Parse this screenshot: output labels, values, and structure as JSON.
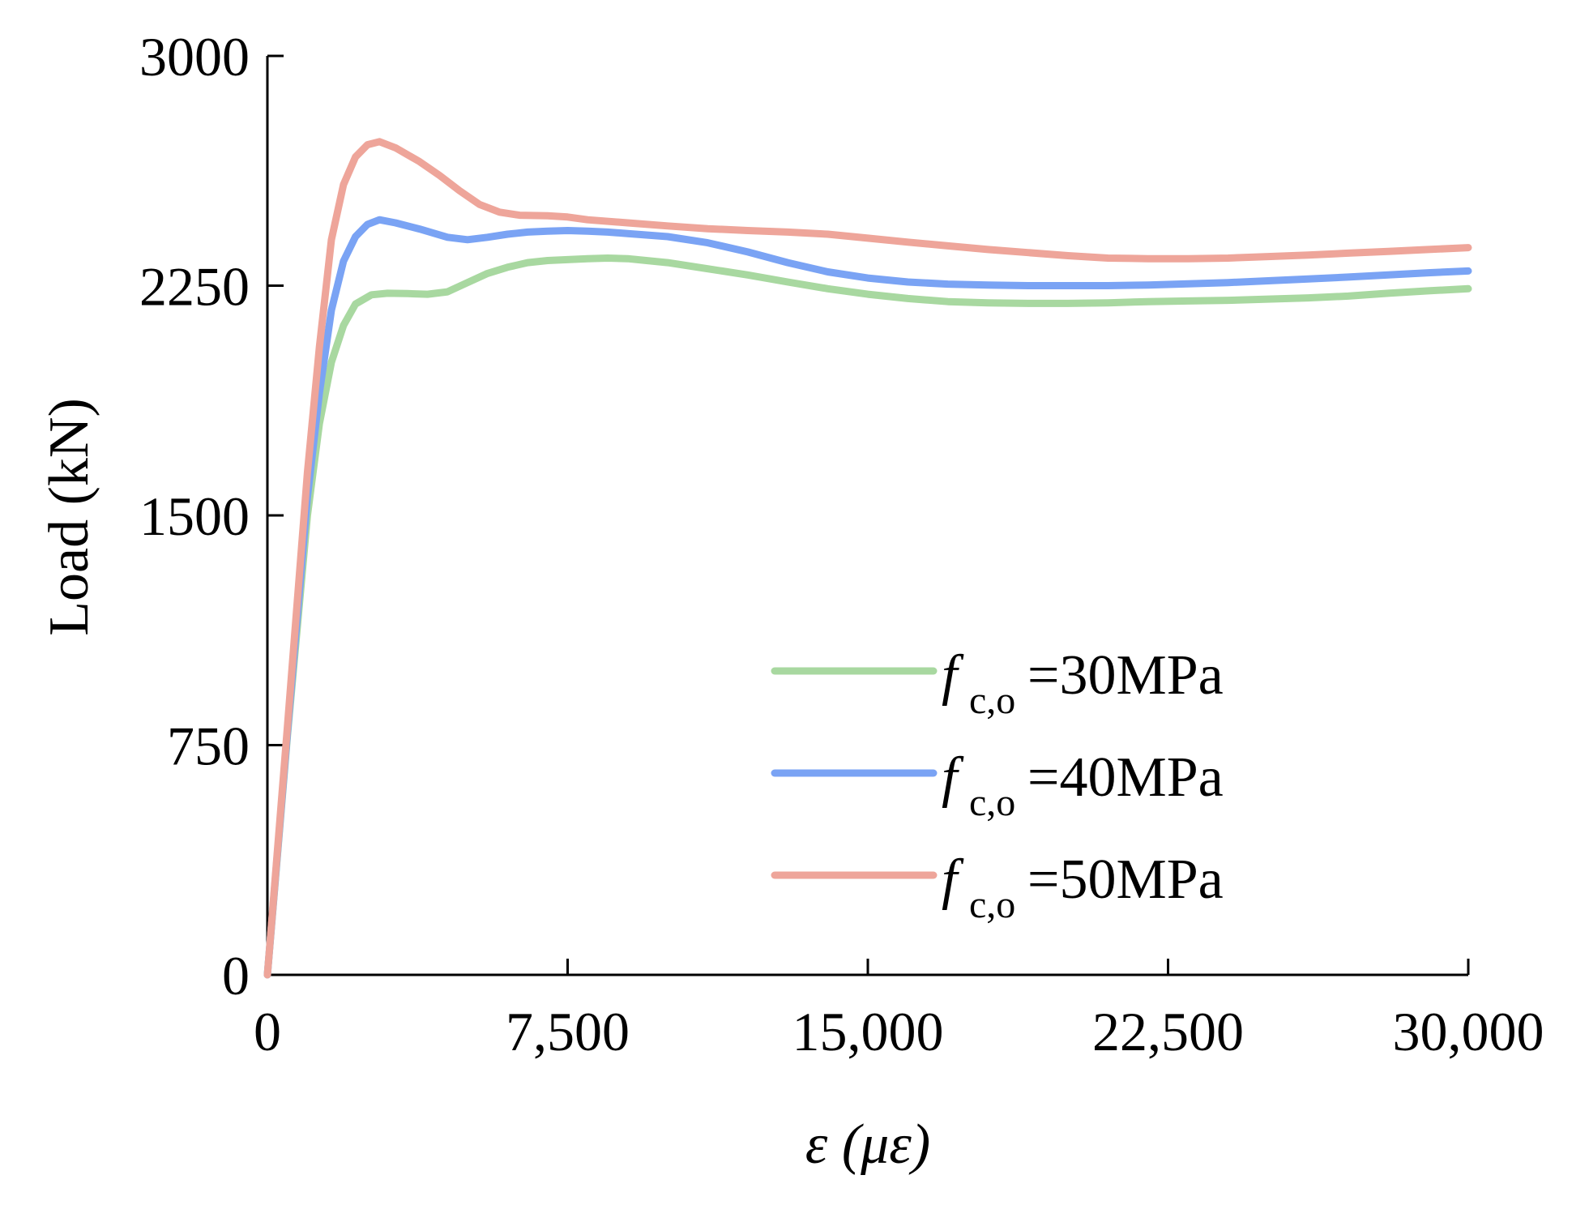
{
  "chart_data": {
    "type": "line",
    "xlabel": "ε (με)",
    "ylabel": "Load (kN)",
    "xlim": [
      0,
      30000
    ],
    "ylim": [
      0,
      3000
    ],
    "x_ticks": [
      0,
      7500,
      15000,
      22500,
      30000
    ],
    "x_tick_labels": [
      "0",
      "7,500",
      "15,000",
      "22,500",
      "30,000"
    ],
    "y_ticks": [
      0,
      750,
      1500,
      2250,
      3000
    ],
    "y_tick_labels": [
      "0",
      "750",
      "1500",
      "2250",
      "3000"
    ],
    "grid": false,
    "legend_position": "lower-right",
    "series": [
      {
        "name": "fc,o=30MPa",
        "legend_main": "f",
        "legend_sub": "c,o",
        "legend_rest": "=30MPa",
        "color": "#a8d8a0",
        "x": [
          0,
          500,
          1000,
          1300,
          1600,
          1900,
          2200,
          2600,
          3000,
          3500,
          4000,
          4500,
          5000,
          5500,
          6000,
          6500,
          7000,
          7500,
          8000,
          8500,
          9000,
          10000,
          11000,
          12000,
          13000,
          14000,
          15000,
          16000,
          17000,
          18000,
          19000,
          20000,
          21000,
          22000,
          23000,
          24000,
          25000,
          26000,
          27000,
          28000,
          29000,
          30000
        ],
        "y": [
          0,
          780,
          1500,
          1800,
          2000,
          2120,
          2190,
          2220,
          2225,
          2224,
          2222,
          2230,
          2260,
          2290,
          2310,
          2325,
          2332,
          2335,
          2338,
          2340,
          2338,
          2325,
          2305,
          2285,
          2262,
          2240,
          2222,
          2208,
          2198,
          2194,
          2192,
          2192,
          2194,
          2198,
          2200,
          2202,
          2206,
          2210,
          2216,
          2225,
          2233,
          2240
        ]
      },
      {
        "name": "fc,o=40MPa",
        "legend_main": "f",
        "legend_sub": "c,o",
        "legend_rest": "=40MPa",
        "color": "#7aa3f4",
        "x": [
          0,
          500,
          1000,
          1300,
          1600,
          1900,
          2200,
          2500,
          2800,
          3200,
          3800,
          4500,
          5000,
          5500,
          6000,
          6500,
          7000,
          7500,
          8000,
          8500,
          9000,
          10000,
          11000,
          12000,
          13000,
          14000,
          15000,
          16000,
          17000,
          18000,
          19000,
          20000,
          21000,
          22000,
          23000,
          24000,
          25000,
          26000,
          27000,
          28000,
          29000,
          30000
        ],
        "y": [
          0,
          790,
          1560,
          1900,
          2170,
          2330,
          2410,
          2450,
          2465,
          2455,
          2435,
          2408,
          2400,
          2408,
          2418,
          2425,
          2428,
          2430,
          2428,
          2425,
          2420,
          2410,
          2390,
          2360,
          2325,
          2295,
          2275,
          2262,
          2255,
          2252,
          2250,
          2250,
          2250,
          2252,
          2256,
          2260,
          2266,
          2272,
          2278,
          2285,
          2292,
          2298
        ]
      },
      {
        "name": "fc,o=50MPa",
        "legend_main": "f",
        "legend_sub": "c,o",
        "legend_rest": "=50MPa",
        "color": "#eea59a",
        "x": [
          0,
          500,
          1000,
          1300,
          1600,
          1900,
          2200,
          2500,
          2800,
          3200,
          3800,
          4300,
          4800,
          5300,
          5800,
          6300,
          7000,
          7500,
          8000,
          9000,
          10000,
          11000,
          12000,
          13000,
          14000,
          15000,
          16000,
          17000,
          18000,
          19000,
          20000,
          21000,
          22000,
          23000,
          24000,
          25000,
          26000,
          27000,
          28000,
          29000,
          30000
        ],
        "y": [
          0,
          810,
          1640,
          2050,
          2400,
          2580,
          2670,
          2710,
          2720,
          2700,
          2655,
          2610,
          2560,
          2515,
          2490,
          2480,
          2478,
          2474,
          2465,
          2455,
          2445,
          2436,
          2430,
          2425,
          2418,
          2405,
          2392,
          2380,
          2368,
          2358,
          2348,
          2340,
          2338,
          2338,
          2340,
          2345,
          2350,
          2356,
          2362,
          2368,
          2374
        ]
      }
    ]
  }
}
